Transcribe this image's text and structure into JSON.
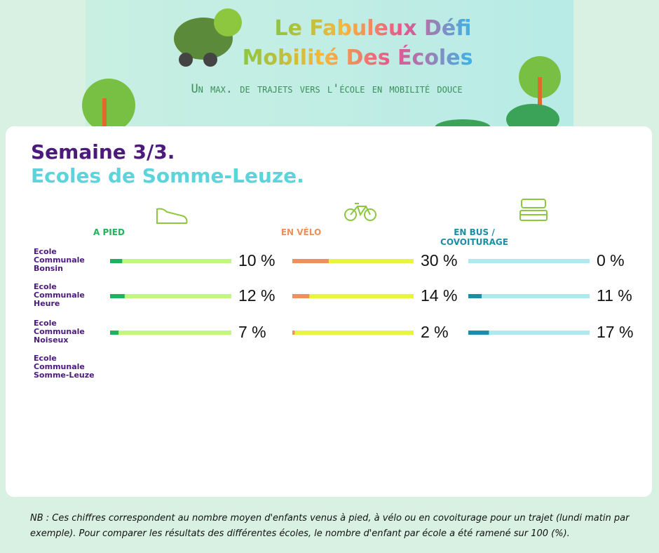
{
  "header": {
    "line1": "Le Fabuleux Défi",
    "line2": "Mobilité Des Écoles",
    "tagline": "Un max. de trajets vers l'école en mobilité douce"
  },
  "chart_data": {
    "type": "bar",
    "title": "Semaine 3/3.",
    "subtitle": "Ecoles de Somme-Leuze.",
    "categories": [
      "Ecole Communale Bonsin",
      "Ecole Communale Heure",
      "Ecole Communale Noiseux",
      "Ecole Communale Somme-Leuze"
    ],
    "xlim": [
      0,
      100
    ],
    "series": [
      {
        "name": "A PIED",
        "color": "#1db25f",
        "track_color": "#c0f77c",
        "label_color": "#22b35c",
        "values": [
          10,
          12,
          7,
          null
        ],
        "value_labels": [
          "10 %",
          "12 %",
          "7 %",
          null
        ]
      },
      {
        "name": "EN VÉLO",
        "color": "#f08e5c",
        "track_color": "#e8f53c",
        "label_color": "#ef8f5a",
        "values": [
          30,
          14,
          2,
          null
        ],
        "value_labels": [
          "30 %",
          "14 %",
          "2 %",
          null
        ]
      },
      {
        "name": "EN BUS / COVOITURAGE",
        "color": "#1a8ea6",
        "track_color": "#aee9ef",
        "label_color": "#1a8ea6",
        "values": [
          0,
          11,
          17,
          null
        ],
        "value_labels": [
          "0 %",
          "11 %",
          "17 %",
          null
        ]
      }
    ]
  },
  "note": "NB : Ces chiffres correspondent au nombre moyen d'enfants venus à pied, à vélo ou en covoiturage pour un trajet (lundi matin par exemple). Pour comparer les résultats des différentes écoles, le nombre d'enfant par école a été ramené sur 100 (%)."
}
